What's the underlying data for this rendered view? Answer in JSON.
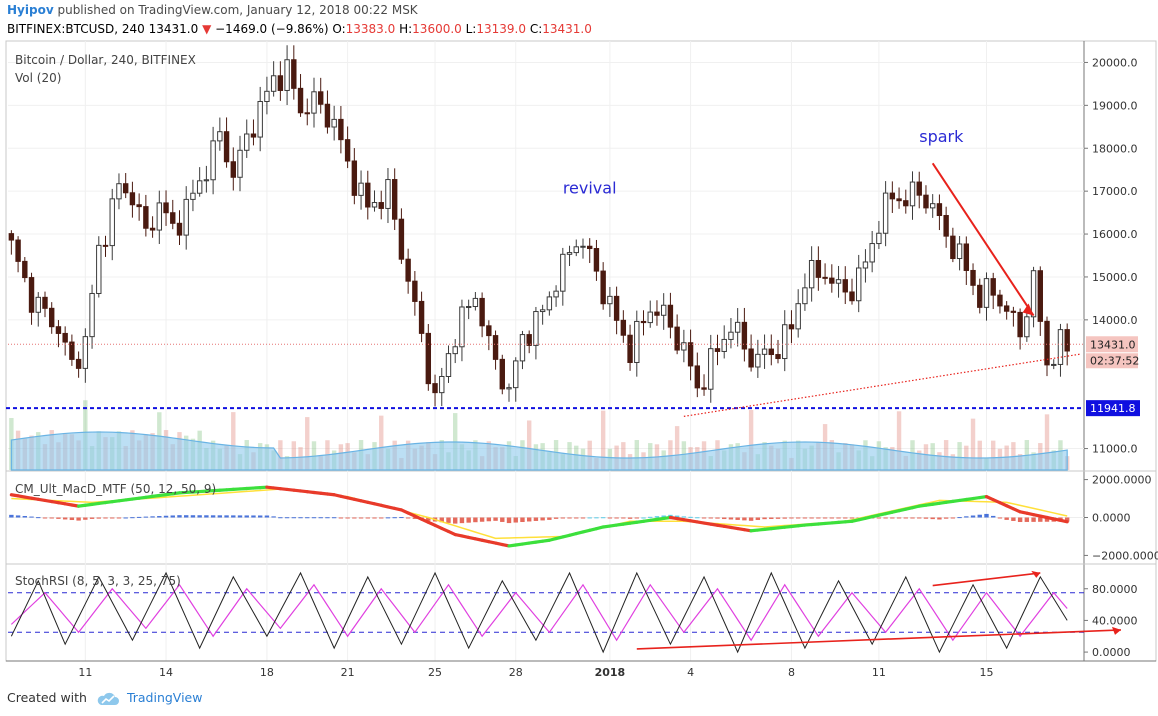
{
  "header": {
    "author": "Hyipov",
    "published_text": "published on TradingView.com, January 12, 2018 00:22 MSK",
    "symbol": "BITFINEX:BTCUSD, 240",
    "last": "13431.0",
    "change_arrow": "▼",
    "change": "−1469.0 (−9.86%)",
    "o_label": "O:",
    "o_value": "13383.0",
    "h_label": "H:",
    "h_value": "13600.0",
    "l_label": "L:",
    "l_value": "13139.0",
    "c_label": "C:",
    "c_value": "13431.0"
  },
  "footer": {
    "created_with": "Created with",
    "brand": "TradingView",
    "logo_icon": "tradingview-cloud-icon"
  },
  "colors": {
    "up": "#3b3b3b",
    "down": "#4a1a10",
    "accent_red": "#e8221c",
    "level_blue": "#1010e0",
    "annotation_blue": "#2a2ad4",
    "volume_area": "#8fc9ec",
    "macd_green": "#3ce03c",
    "macd_red": "#e83a2a",
    "macd_signal": "#ffe03a",
    "stoch_k": "#222222",
    "stoch_d": "#e040e0"
  },
  "chart_data": {
    "type": "candlestick",
    "title": "Bitcoin / Dollar, 240, BITFINEX",
    "indicator_volume": "Vol (20)",
    "x_ticks": [
      "11",
      "14",
      "18",
      "21",
      "25",
      "28",
      "2018",
      "4",
      "8",
      "11",
      "15"
    ],
    "price_axis": {
      "ticks": [
        "20000.0",
        "19000.0",
        "18000.0",
        "17000.0",
        "16000.0",
        "15000.0",
        "14000.0",
        "11000.0"
      ],
      "ylim": [
        10500,
        20500
      ],
      "last_price_label": "13431.0",
      "countdown_label": "02:37:52",
      "support_level_label": "11941.8",
      "support_level": 11941.8
    },
    "path_key_points": [
      [
        0,
        15700
      ],
      [
        3,
        14500
      ],
      [
        7,
        13800
      ],
      [
        9,
        12900
      ],
      [
        11,
        13500
      ],
      [
        13,
        15600
      ],
      [
        16,
        17100
      ],
      [
        18,
        16900
      ],
      [
        20,
        16000
      ],
      [
        22,
        16700
      ],
      [
        24,
        16100
      ],
      [
        26,
        16600
      ],
      [
        28,
        17200
      ],
      [
        31,
        18300
      ],
      [
        33,
        17400
      ],
      [
        36,
        18600
      ],
      [
        39,
        19600
      ],
      [
        41,
        19800
      ],
      [
        43,
        18900
      ],
      [
        45,
        19100
      ],
      [
        48,
        18600
      ],
      [
        50,
        17600
      ],
      [
        53,
        16600
      ],
      [
        56,
        17000
      ],
      [
        58,
        15600
      ],
      [
        61,
        13600
      ],
      [
        63,
        12100
      ],
      [
        66,
        13700
      ],
      [
        69,
        14600
      ],
      [
        71,
        13400
      ],
      [
        74,
        12300
      ],
      [
        76,
        13600
      ],
      [
        78,
        13900
      ],
      [
        81,
        14900
      ],
      [
        84,
        15900
      ],
      [
        86,
        15500
      ],
      [
        89,
        14300
      ],
      [
        92,
        13300
      ],
      [
        95,
        14300
      ],
      [
        97,
        14100
      ],
      [
        100,
        13300
      ],
      [
        102,
        12400
      ],
      [
        105,
        13300
      ],
      [
        107,
        13900
      ],
      [
        110,
        13100
      ],
      [
        113,
        13200
      ],
      [
        116,
        13800
      ],
      [
        118,
        15000
      ],
      [
        121,
        15100
      ],
      [
        123,
        14700
      ],
      [
        125,
        14700
      ],
      [
        127,
        15300
      ],
      [
        129,
        16300
      ],
      [
        131,
        16900
      ],
      [
        133,
        16800
      ],
      [
        135,
        17000
      ],
      [
        137,
        16600
      ],
      [
        140,
        15700
      ],
      [
        142,
        15200
      ],
      [
        144,
        14500
      ],
      [
        146,
        14700
      ],
      [
        148,
        14200
      ],
      [
        150,
        13700
      ],
      [
        152,
        14900
      ],
      [
        154,
        13000
      ],
      [
        156,
        13400
      ]
    ],
    "annotations": [
      {
        "text": "spark",
        "color": "#2a2ad4"
      },
      {
        "text": "revival",
        "color": "#2a2ad4"
      }
    ],
    "macd": {
      "label": "CM_Ult_MacD_MTF (50, 12, 50, 9)",
      "ticks": [
        "2000.0000",
        "0.0000",
        "−2000.0000"
      ],
      "ylim": [
        -2400,
        2400
      ],
      "line_key_points": [
        [
          0,
          1200
        ],
        [
          10,
          600
        ],
        [
          25,
          1300
        ],
        [
          38,
          1600
        ],
        [
          48,
          1200
        ],
        [
          58,
          400
        ],
        [
          66,
          -900
        ],
        [
          74,
          -1500
        ],
        [
          80,
          -1200
        ],
        [
          88,
          -500
        ],
        [
          98,
          0
        ],
        [
          110,
          -700
        ],
        [
          118,
          -400
        ],
        [
          125,
          -200
        ],
        [
          135,
          600
        ],
        [
          145,
          1100
        ],
        [
          150,
          300
        ],
        [
          158,
          -300
        ]
      ],
      "signal_key_points": [
        [
          0,
          1000
        ],
        [
          12,
          800
        ],
        [
          28,
          1200
        ],
        [
          40,
          1500
        ],
        [
          50,
          1100
        ],
        [
          62,
          0
        ],
        [
          72,
          -1100
        ],
        [
          82,
          -1000
        ],
        [
          92,
          -200
        ],
        [
          100,
          -200
        ],
        [
          112,
          -500
        ],
        [
          124,
          -200
        ],
        [
          138,
          900
        ],
        [
          148,
          800
        ],
        [
          158,
          0
        ]
      ]
    },
    "stoch_rsi": {
      "label": "StochRSI (8, 5, 3, 3, 25, 75)",
      "ticks": [
        "80.0000",
        "40.0000",
        "0.0000"
      ],
      "ylim": [
        -10,
        110
      ],
      "bands": [
        25,
        75
      ],
      "k_key_points": [
        [
          0,
          20
        ],
        [
          4,
          90
        ],
        [
          8,
          10
        ],
        [
          13,
          95
        ],
        [
          18,
          15
        ],
        [
          23,
          100
        ],
        [
          28,
          5
        ],
        [
          33,
          95
        ],
        [
          38,
          20
        ],
        [
          43,
          100
        ],
        [
          48,
          5
        ],
        [
          53,
          95
        ],
        [
          58,
          10
        ],
        [
          63,
          100
        ],
        [
          68,
          5
        ],
        [
          73,
          90
        ],
        [
          78,
          15
        ],
        [
          83,
          100
        ],
        [
          88,
          0
        ],
        [
          93,
          100
        ],
        [
          98,
          10
        ],
        [
          103,
          95
        ],
        [
          108,
          0
        ],
        [
          113,
          100
        ],
        [
          118,
          5
        ],
        [
          123,
          90
        ],
        [
          128,
          10
        ],
        [
          133,
          95
        ],
        [
          138,
          0
        ],
        [
          143,
          85
        ],
        [
          148,
          5
        ],
        [
          153,
          95
        ],
        [
          157,
          40
        ],
        [
          160,
          55
        ]
      ],
      "d_key_points": [
        [
          0,
          35
        ],
        [
          5,
          75
        ],
        [
          10,
          25
        ],
        [
          15,
          80
        ],
        [
          20,
          30
        ],
        [
          25,
          85
        ],
        [
          30,
          20
        ],
        [
          35,
          80
        ],
        [
          40,
          30
        ],
        [
          45,
          85
        ],
        [
          50,
          20
        ],
        [
          55,
          80
        ],
        [
          60,
          25
        ],
        [
          65,
          85
        ],
        [
          70,
          20
        ],
        [
          75,
          75
        ],
        [
          80,
          25
        ],
        [
          85,
          85
        ],
        [
          90,
          15
        ],
        [
          95,
          85
        ],
        [
          100,
          25
        ],
        [
          105,
          80
        ],
        [
          110,
          15
        ],
        [
          115,
          85
        ],
        [
          120,
          20
        ],
        [
          125,
          75
        ],
        [
          130,
          25
        ],
        [
          135,
          80
        ],
        [
          140,
          15
        ],
        [
          145,
          75
        ],
        [
          150,
          20
        ],
        [
          155,
          75
        ],
        [
          158,
          45
        ],
        [
          160,
          50
        ]
      ]
    }
  }
}
